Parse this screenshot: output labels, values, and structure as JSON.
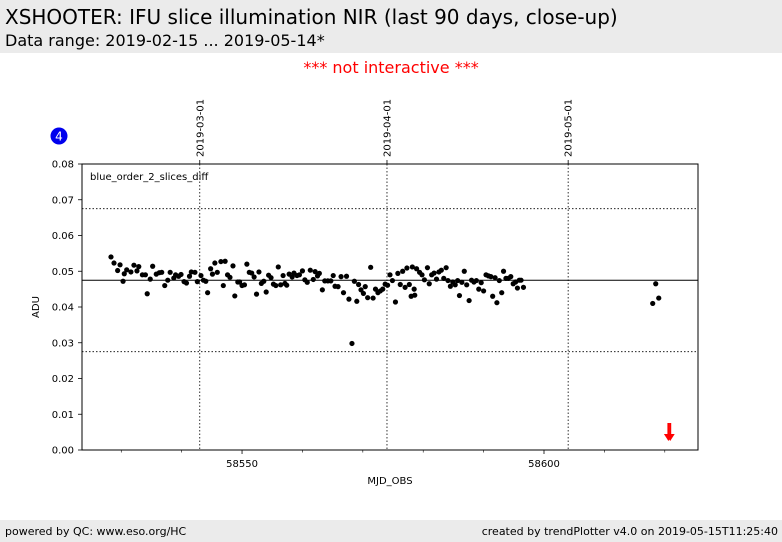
{
  "header": {
    "title": "XSHOOTER: IFU slice illumination NIR (last 90 days, close-up)",
    "subtitle": "Data range: 2019-02-15 ... 2019-05-14*",
    "notice": "*** not interactive ***"
  },
  "footer": {
    "left": "powered by QC: www.eso.org/HC",
    "right": "created by trendPlotter v4.0 on 2019-05-15T11:25:40"
  },
  "badge": "4",
  "colors": {
    "notice": "#ff0000",
    "badge": "#0000ee",
    "arrow": "#ff0000",
    "points": "#000000"
  },
  "chart_data": {
    "type": "scatter",
    "annotation": "blue_order_2_slices_diff",
    "xlabel": "MJD_OBS",
    "ylabel": "ADU",
    "xlim": [
      58523.5,
      58625.5
    ],
    "ylim": [
      0.0,
      0.08
    ],
    "xticks": [
      58550,
      58600
    ],
    "xtick_labels": [
      "58550",
      "58600"
    ],
    "xminor": [
      58530,
      58540,
      58560,
      58570,
      58580,
      58590,
      58610,
      58620
    ],
    "yticks": [
      0.0,
      0.01,
      0.02,
      0.03,
      0.04,
      0.05,
      0.06,
      0.07,
      0.08
    ],
    "ytick_labels": [
      "0.00",
      "0.01",
      "0.02",
      "0.03",
      "0.04",
      "0.05",
      "0.06",
      "0.07",
      "0.08"
    ],
    "date_markers": [
      {
        "label": "2019-03-01",
        "mjd": 58543
      },
      {
        "label": "2019-04-01",
        "mjd": 58574
      },
      {
        "label": "2019-05-01",
        "mjd": 58604
      }
    ],
    "mean_line": 0.0475,
    "limit_lines": [
      0.0275,
      0.0675
    ],
    "outlier_arrows_x": [
      58620.6,
      58620.9
    ],
    "points": [
      [
        58528.3,
        0.054
      ],
      [
        58528.8,
        0.0523
      ],
      [
        58529.4,
        0.0502
      ],
      [
        58529.8,
        0.0518
      ],
      [
        58530.3,
        0.0472
      ],
      [
        58530.5,
        0.0493
      ],
      [
        58530.9,
        0.0504
      ],
      [
        58531.6,
        0.0498
      ],
      [
        58532.1,
        0.0517
      ],
      [
        58532.6,
        0.0501
      ],
      [
        58532.9,
        0.0513
      ],
      [
        58533.5,
        0.049
      ],
      [
        58534.0,
        0.049
      ],
      [
        58534.3,
        0.0437
      ],
      [
        58534.8,
        0.0478
      ],
      [
        58535.2,
        0.0514
      ],
      [
        58535.8,
        0.0492
      ],
      [
        58536.3,
        0.0496
      ],
      [
        58536.7,
        0.0497
      ],
      [
        58537.2,
        0.046
      ],
      [
        58537.7,
        0.0475
      ],
      [
        58538.1,
        0.0497
      ],
      [
        58538.7,
        0.0481
      ],
      [
        58539.0,
        0.049
      ],
      [
        58539.5,
        0.0486
      ],
      [
        58539.9,
        0.0491
      ],
      [
        58540.4,
        0.0471
      ],
      [
        58540.8,
        0.0467
      ],
      [
        58541.3,
        0.0486
      ],
      [
        58541.6,
        0.0498
      ],
      [
        58542.2,
        0.0497
      ],
      [
        58542.6,
        0.0471
      ],
      [
        58543.2,
        0.0488
      ],
      [
        58543.6,
        0.0475
      ],
      [
        58544.0,
        0.0472
      ],
      [
        58544.3,
        0.044
      ],
      [
        58544.8,
        0.0507
      ],
      [
        58545.1,
        0.0492
      ],
      [
        58545.5,
        0.0523
      ],
      [
        58545.9,
        0.0497
      ],
      [
        58546.5,
        0.0527
      ],
      [
        58546.9,
        0.046
      ],
      [
        58547.2,
        0.0528
      ],
      [
        58547.6,
        0.049
      ],
      [
        58548.0,
        0.0483
      ],
      [
        58548.5,
        0.0515
      ],
      [
        58548.8,
        0.0431
      ],
      [
        58549.3,
        0.047
      ],
      [
        58549.6,
        0.047
      ],
      [
        58550.0,
        0.046
      ],
      [
        58550.4,
        0.0462
      ],
      [
        58550.8,
        0.052
      ],
      [
        58551.2,
        0.0497
      ],
      [
        58551.6,
        0.0495
      ],
      [
        58552.0,
        0.0484
      ],
      [
        58552.4,
        0.0436
      ],
      [
        58552.8,
        0.0498
      ],
      [
        58553.2,
        0.0466
      ],
      [
        58553.6,
        0.0472
      ],
      [
        58554.0,
        0.0442
      ],
      [
        58554.4,
        0.0489
      ],
      [
        58554.8,
        0.0482
      ],
      [
        58555.2,
        0.0464
      ],
      [
        58555.6,
        0.046
      ],
      [
        58556.0,
        0.0512
      ],
      [
        58556.4,
        0.0462
      ],
      [
        58556.8,
        0.0488
      ],
      [
        58557.1,
        0.0466
      ],
      [
        58557.4,
        0.0461
      ],
      [
        58557.8,
        0.0492
      ],
      [
        58558.3,
        0.0484
      ],
      [
        58558.6,
        0.0495
      ],
      [
        58559.1,
        0.0488
      ],
      [
        58559.5,
        0.049
      ],
      [
        58560.0,
        0.0501
      ],
      [
        58560.4,
        0.0476
      ],
      [
        58560.8,
        0.0469
      ],
      [
        58561.3,
        0.0503
      ],
      [
        58561.8,
        0.0477
      ],
      [
        58562.1,
        0.0499
      ],
      [
        58562.5,
        0.0487
      ],
      [
        58562.8,
        0.0494
      ],
      [
        58563.3,
        0.0448
      ],
      [
        58563.7,
        0.0473
      ],
      [
        58564.2,
        0.0473
      ],
      [
        58564.7,
        0.0473
      ],
      [
        58565.1,
        0.0488
      ],
      [
        58565.4,
        0.0458
      ],
      [
        58565.9,
        0.0457
      ],
      [
        58566.4,
        0.0485
      ],
      [
        58566.8,
        0.044
      ],
      [
        58567.3,
        0.0486
      ],
      [
        58567.7,
        0.0422
      ],
      [
        58568.2,
        0.0298
      ],
      [
        58568.6,
        0.0472
      ],
      [
        58569.0,
        0.0416
      ],
      [
        58569.3,
        0.0463
      ],
      [
        58569.7,
        0.0448
      ],
      [
        58570.1,
        0.0438
      ],
      [
        58570.4,
        0.0457
      ],
      [
        58570.8,
        0.0426
      ],
      [
        58571.3,
        0.0511
      ],
      [
        58571.7,
        0.0425
      ],
      [
        58572.1,
        0.045
      ],
      [
        58572.5,
        0.044
      ],
      [
        58572.9,
        0.0445
      ],
      [
        58573.3,
        0.045
      ],
      [
        58573.7,
        0.0464
      ],
      [
        58574.1,
        0.0461
      ],
      [
        58574.5,
        0.049
      ],
      [
        58574.9,
        0.0474
      ],
      [
        58575.4,
        0.0414
      ],
      [
        58575.8,
        0.0494
      ],
      [
        58576.2,
        0.0463
      ],
      [
        58576.6,
        0.05
      ],
      [
        58577.0,
        0.0455
      ],
      [
        58577.3,
        0.0509
      ],
      [
        58577.7,
        0.0463
      ],
      [
        58578.0,
        0.043
      ],
      [
        58578.2,
        0.0512
      ],
      [
        58578.5,
        0.045
      ],
      [
        58578.6,
        0.0433
      ],
      [
        58578.9,
        0.0507
      ],
      [
        58579.4,
        0.0497
      ],
      [
        58579.8,
        0.049
      ],
      [
        58580.2,
        0.0476
      ],
      [
        58580.7,
        0.051
      ],
      [
        58581.0,
        0.0465
      ],
      [
        58581.4,
        0.049
      ],
      [
        58581.8,
        0.0495
      ],
      [
        58582.2,
        0.0478
      ],
      [
        58582.6,
        0.0498
      ],
      [
        58583.0,
        0.0503
      ],
      [
        58583.4,
        0.048
      ],
      [
        58583.8,
        0.051
      ],
      [
        58584.1,
        0.0474
      ],
      [
        58584.5,
        0.0458
      ],
      [
        58584.9,
        0.047
      ],
      [
        58585.3,
        0.0462
      ],
      [
        58585.7,
        0.0474
      ],
      [
        58586.0,
        0.0432
      ],
      [
        58586.4,
        0.0469
      ],
      [
        58586.8,
        0.05
      ],
      [
        58587.2,
        0.0462
      ],
      [
        58587.6,
        0.0418
      ],
      [
        58588.0,
        0.0475
      ],
      [
        58588.4,
        0.047
      ],
      [
        58588.8,
        0.0474
      ],
      [
        58589.2,
        0.045
      ],
      [
        58589.6,
        0.0468
      ],
      [
        58590.0,
        0.0445
      ],
      [
        58590.4,
        0.049
      ],
      [
        58590.8,
        0.0487
      ],
      [
        58591.2,
        0.0485
      ],
      [
        58591.5,
        0.043
      ],
      [
        58591.9,
        0.0482
      ],
      [
        58592.2,
        0.0412
      ],
      [
        58592.6,
        0.0474
      ],
      [
        58593.0,
        0.044
      ],
      [
        58593.3,
        0.05
      ],
      [
        58593.7,
        0.048
      ],
      [
        58594.1,
        0.048
      ],
      [
        58594.5,
        0.0485
      ],
      [
        58594.9,
        0.0465
      ],
      [
        58595.3,
        0.047
      ],
      [
        58595.6,
        0.0453
      ],
      [
        58595.9,
        0.0475
      ],
      [
        58596.2,
        0.0475
      ],
      [
        58596.6,
        0.0455
      ],
      [
        58618.0,
        0.041
      ],
      [
        58618.5,
        0.0465
      ],
      [
        58619.0,
        0.0425
      ]
    ]
  }
}
